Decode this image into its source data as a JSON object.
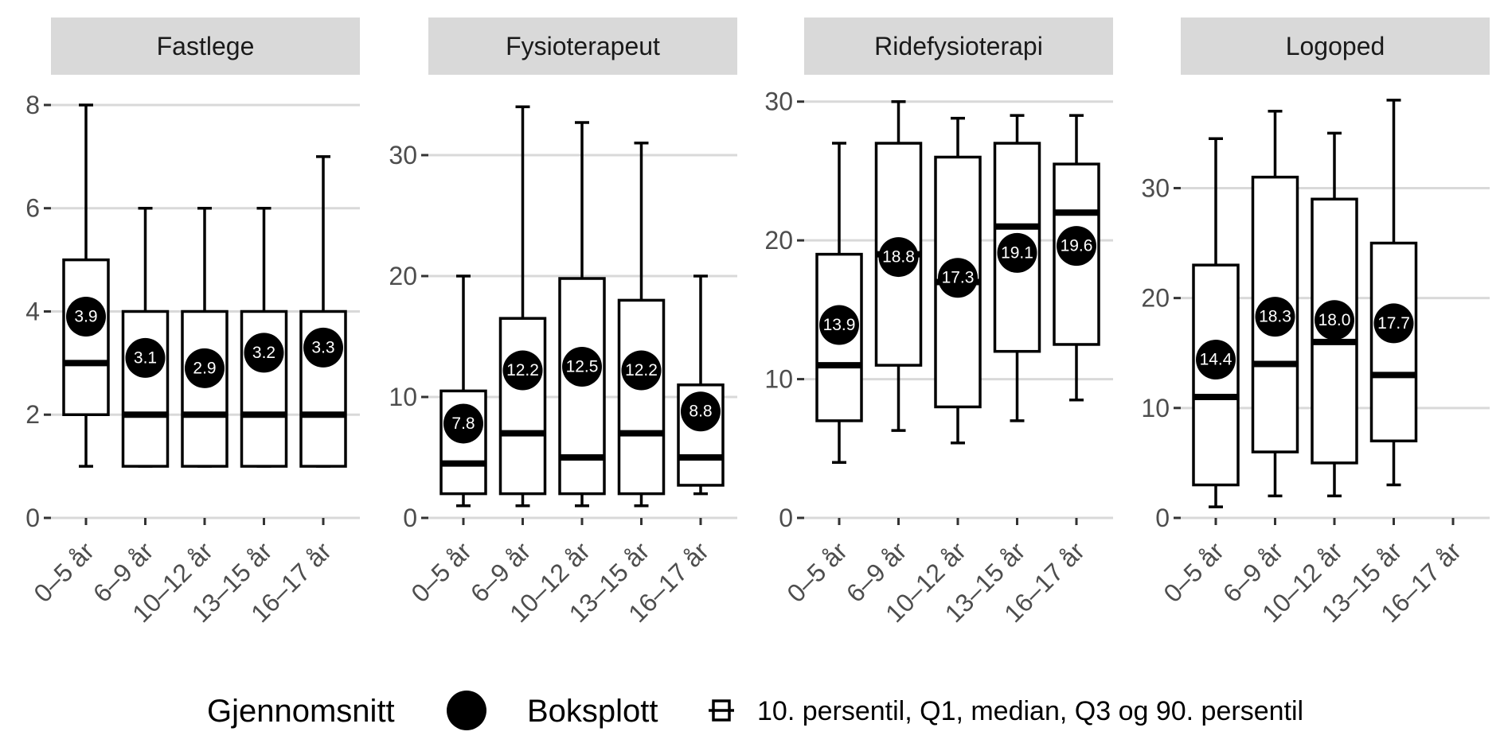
{
  "chart_data": {
    "type": "box",
    "categories": [
      "0–5 år",
      "6–9 år",
      "10–12 år",
      "13–15 år",
      "16–17 år"
    ],
    "facets": [
      {
        "title": "Fastlege",
        "ylim": [
          0,
          8.2
        ],
        "yticks": [
          0,
          2,
          4,
          6,
          8
        ],
        "boxes": [
          {
            "category": "0–5 år",
            "p10": 1,
            "q1": 2,
            "median": 3,
            "q3": 5,
            "p90": 8,
            "mean": 3.9,
            "mean_label": "3.9"
          },
          {
            "category": "6–9 år",
            "p10": 1,
            "q1": 1,
            "median": 2,
            "q3": 4,
            "p90": 6,
            "mean": 3.1,
            "mean_label": "3.1"
          },
          {
            "category": "10–12 år",
            "p10": 1,
            "q1": 1,
            "median": 2,
            "q3": 4,
            "p90": 6,
            "mean": 2.9,
            "mean_label": "2.9"
          },
          {
            "category": "13–15 år",
            "p10": 1,
            "q1": 1,
            "median": 2,
            "q3": 4,
            "p90": 6,
            "mean": 3.2,
            "mean_label": "3.2"
          },
          {
            "category": "16–17 år",
            "p10": 1,
            "q1": 1,
            "median": 2,
            "q3": 4,
            "p90": 7,
            "mean": 3.3,
            "mean_label": "3.3"
          }
        ]
      },
      {
        "title": "Fysioterapeut",
        "ylim": [
          0,
          35
        ],
        "yticks": [
          0,
          10,
          20,
          30
        ],
        "boxes": [
          {
            "category": "0–5 år",
            "p10": 1,
            "q1": 2,
            "median": 4.5,
            "q3": 10.5,
            "p90": 20,
            "mean": 7.8,
            "mean_label": "7.8"
          },
          {
            "category": "6–9 år",
            "p10": 1,
            "q1": 2,
            "median": 7,
            "q3": 16.5,
            "p90": 34,
            "mean": 12.2,
            "mean_label": "12.2"
          },
          {
            "category": "10–12 år",
            "p10": 1,
            "q1": 2,
            "median": 5,
            "q3": 19.8,
            "p90": 32.7,
            "mean": 12.5,
            "mean_label": "12.5"
          },
          {
            "category": "13–15 år",
            "p10": 1,
            "q1": 2,
            "median": 7,
            "q3": 18,
            "p90": 31,
            "mean": 12.2,
            "mean_label": "12.2"
          },
          {
            "category": "16–17 år",
            "p10": 2,
            "q1": 2.7,
            "median": 5,
            "q3": 11,
            "p90": 20,
            "mean": 8.8,
            "mean_label": "8.8"
          }
        ]
      },
      {
        "title": "Ridefysioterapi",
        "ylim": [
          0,
          30.5
        ],
        "yticks": [
          0,
          10,
          20,
          30
        ],
        "boxes": [
          {
            "category": "0–5 år",
            "p10": 4,
            "q1": 7,
            "median": 11,
            "q3": 19,
            "p90": 27,
            "mean": 13.9,
            "mean_label": "13.9"
          },
          {
            "category": "6–9 år",
            "p10": 6.3,
            "q1": 11,
            "median": 19,
            "q3": 27,
            "p90": 30,
            "mean": 18.8,
            "mean_label": "18.8"
          },
          {
            "category": "10–12 år",
            "p10": 5.4,
            "q1": 8,
            "median": 17,
            "q3": 26,
            "p90": 28.8,
            "mean": 17.3,
            "mean_label": "17.3"
          },
          {
            "category": "13–15 år",
            "p10": 7,
            "q1": 12,
            "median": 21,
            "q3": 27,
            "p90": 29,
            "mean": 19.1,
            "mean_label": "19.1"
          },
          {
            "category": "16–17 år",
            "p10": 8.5,
            "q1": 12.5,
            "median": 22,
            "q3": 25.5,
            "p90": 29,
            "mean": 19.6,
            "mean_label": "19.6"
          }
        ]
      },
      {
        "title": "Logoped",
        "ylim": [
          0,
          38.5
        ],
        "yticks": [
          0,
          10,
          20,
          30
        ],
        "boxes": [
          {
            "category": "0–5 år",
            "p10": 1,
            "q1": 3,
            "median": 11,
            "q3": 23,
            "p90": 34.5,
            "mean": 14.4,
            "mean_label": "14.4"
          },
          {
            "category": "6–9 år",
            "p10": 2,
            "q1": 6,
            "median": 14,
            "q3": 31,
            "p90": 37,
            "mean": 18.3,
            "mean_label": "18.3"
          },
          {
            "category": "10–12 år",
            "p10": 2,
            "q1": 5,
            "median": 16,
            "q3": 29,
            "p90": 35,
            "mean": 18.0,
            "mean_label": "18.0"
          },
          {
            "category": "13–15 år",
            "p10": 3,
            "q1": 7,
            "median": 13,
            "q3": 25,
            "p90": 38,
            "mean": 17.7,
            "mean_label": "17.7"
          }
        ]
      }
    ],
    "legend": {
      "mean_title": "Gjennomsnitt",
      "box_title": "Boksplott",
      "box_description": "10. persentil, Q1, median, Q3 og 90. persentil"
    }
  }
}
